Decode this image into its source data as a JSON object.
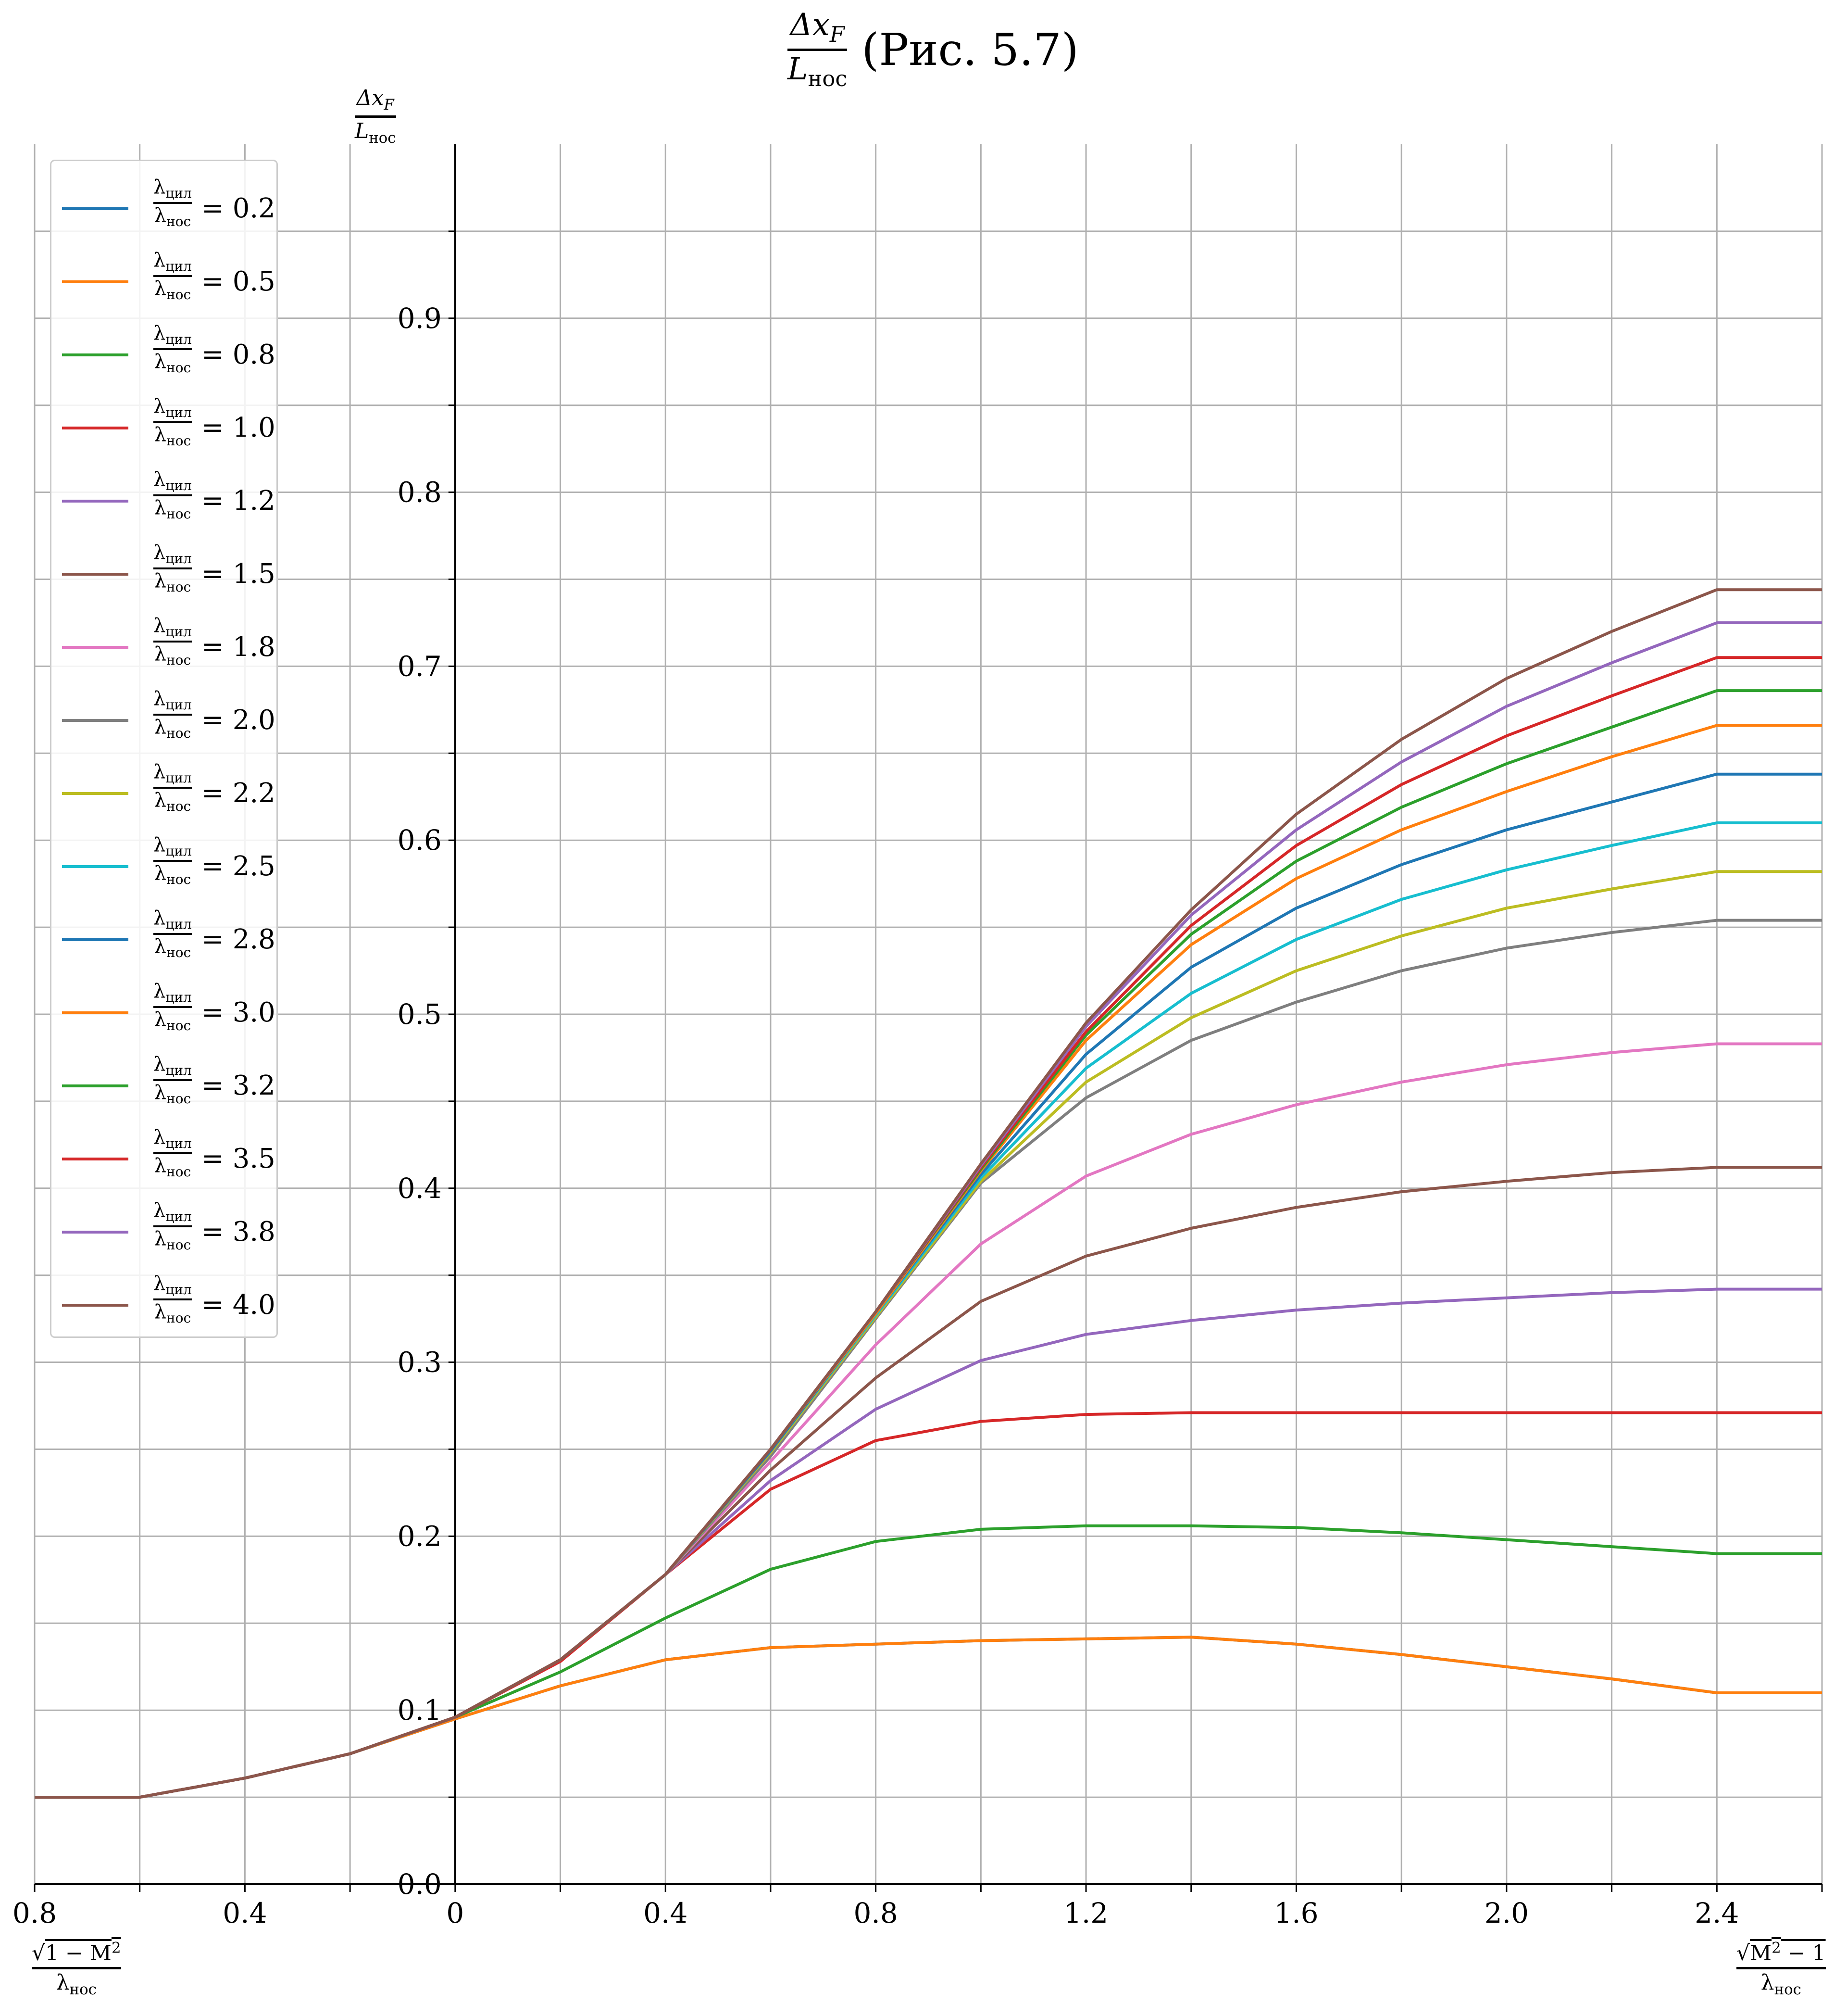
{
  "title": {
    "num": "Δx",
    "num_sub": "F",
    "den": "L",
    "den_sub": "нос",
    "text": "(Рис. 5.7)"
  },
  "y_axis_label": {
    "num": "Δx",
    "num_sub": "F",
    "den": "L",
    "den_sub": "нос"
  },
  "x_axis_label_left": {
    "num_sqrt": "1 − M",
    "num_sup": "2",
    "den": "λ",
    "den_sub": "нос"
  },
  "x_axis_label_right": {
    "num_sqrt": "M",
    "num_sup": "2",
    "num_tail": " − 1",
    "den": "λ",
    "den_sub": "нос"
  },
  "legend_label": {
    "num": "λ",
    "num_sub": "цил",
    "den": "λ",
    "den_sub": "нос"
  },
  "chart_data": {
    "type": "line",
    "xlim": [
      -0.8,
      2.6
    ],
    "ylim": [
      0.0,
      1.0
    ],
    "x_ticks": [
      -0.8,
      -0.6,
      -0.4,
      -0.2,
      0,
      0.2,
      0.4,
      0.6,
      0.8,
      1.0,
      1.2,
      1.4,
      1.6,
      1.8,
      2.0,
      2.2,
      2.4,
      2.6
    ],
    "x_tick_labels": [
      {
        "x": -0.8,
        "label": "0.8"
      },
      {
        "x": -0.4,
        "label": "0.4"
      },
      {
        "x": 0,
        "label": "0"
      },
      {
        "x": 0.4,
        "label": "0.4"
      },
      {
        "x": 0.8,
        "label": "0.8"
      },
      {
        "x": 1.2,
        "label": "1.2"
      },
      {
        "x": 1.6,
        "label": "1.6"
      },
      {
        "x": 2.0,
        "label": "2.0"
      },
      {
        "x": 2.4,
        "label": "2.4"
      }
    ],
    "y_ticks": [
      0.0,
      0.05,
      0.1,
      0.15,
      0.2,
      0.25,
      0.3,
      0.35,
      0.4,
      0.45,
      0.5,
      0.55,
      0.6,
      0.65,
      0.7,
      0.75,
      0.8,
      0.85,
      0.9,
      0.95
    ],
    "y_tick_labels": [
      {
        "y": 0.0,
        "label": "0.0"
      },
      {
        "y": 0.1,
        "label": "0.1"
      },
      {
        "y": 0.2,
        "label": "0.2"
      },
      {
        "y": 0.3,
        "label": "0.3"
      },
      {
        "y": 0.4,
        "label": "0.4"
      },
      {
        "y": 0.5,
        "label": "0.5"
      },
      {
        "y": 0.6,
        "label": "0.6"
      },
      {
        "y": 0.7,
        "label": "0.7"
      },
      {
        "y": 0.8,
        "label": "0.8"
      },
      {
        "y": 0.9,
        "label": "0.9"
      }
    ],
    "grid": true,
    "legend_position": "upper-left",
    "x": [
      -0.8,
      -0.6,
      -0.4,
      -0.2,
      0.0,
      0.2,
      0.4,
      0.6,
      0.8,
      1.0,
      1.2,
      1.4,
      1.6,
      1.8,
      2.0,
      2.2,
      2.4,
      2.6
    ],
    "series": [
      {
        "name": "0.2",
        "color": "#1f77b4",
        "values": [
          0.05,
          0.05,
          0.061,
          0.075,
          0.095,
          0.114,
          0.129,
          0.136,
          0.138,
          0.14,
          0.141,
          0.142,
          0.138,
          0.132,
          0.125,
          0.118,
          0.11,
          0.11
        ]
      },
      {
        "name": "0.5",
        "color": "#ff7f0e",
        "values": [
          0.05,
          0.05,
          0.061,
          0.075,
          0.095,
          0.114,
          0.129,
          0.136,
          0.138,
          0.14,
          0.141,
          0.142,
          0.138,
          0.132,
          0.125,
          0.118,
          0.11,
          0.11
        ]
      },
      {
        "name": "0.8",
        "color": "#2ca02c",
        "values": [
          0.05,
          0.05,
          0.061,
          0.075,
          0.096,
          0.122,
          0.153,
          0.181,
          0.197,
          0.204,
          0.206,
          0.206,
          0.205,
          0.202,
          0.198,
          0.194,
          0.19,
          0.19
        ]
      },
      {
        "name": "1.0",
        "color": "#d62728",
        "values": [
          0.05,
          0.05,
          0.061,
          0.075,
          0.096,
          0.128,
          0.178,
          0.227,
          0.255,
          0.266,
          0.27,
          0.271,
          0.271,
          0.271,
          0.271,
          0.271,
          0.271,
          0.271
        ]
      },
      {
        "name": "1.2",
        "color": "#9467bd",
        "values": [
          0.05,
          0.05,
          0.061,
          0.075,
          0.096,
          0.129,
          0.178,
          0.232,
          0.273,
          0.301,
          0.316,
          0.324,
          0.33,
          0.334,
          0.337,
          0.34,
          0.342,
          0.342
        ]
      },
      {
        "name": "1.5",
        "color": "#8c564b",
        "values": [
          0.05,
          0.05,
          0.061,
          0.075,
          0.096,
          0.129,
          0.178,
          0.238,
          0.291,
          0.335,
          0.361,
          0.377,
          0.389,
          0.398,
          0.404,
          0.409,
          0.412,
          0.412
        ]
      },
      {
        "name": "1.8",
        "color": "#e377c2",
        "values": [
          0.05,
          0.05,
          0.061,
          0.075,
          0.096,
          0.129,
          0.178,
          0.243,
          0.31,
          0.368,
          0.407,
          0.431,
          0.448,
          0.461,
          0.471,
          0.478,
          0.483,
          0.483
        ]
      },
      {
        "name": "2.0",
        "color": "#7f7f7f",
        "values": [
          0.05,
          0.05,
          0.061,
          0.075,
          0.096,
          0.129,
          0.178,
          0.246,
          0.325,
          0.403,
          0.452,
          0.485,
          0.507,
          0.525,
          0.538,
          0.547,
          0.554,
          0.554
        ]
      },
      {
        "name": "2.2",
        "color": "#bcbd22",
        "values": [
          0.05,
          0.05,
          0.061,
          0.075,
          0.096,
          0.129,
          0.178,
          0.248,
          0.326,
          0.404,
          0.461,
          0.498,
          0.525,
          0.545,
          0.561,
          0.572,
          0.582,
          0.582
        ]
      },
      {
        "name": "2.5",
        "color": "#17becf",
        "values": [
          0.05,
          0.05,
          0.061,
          0.075,
          0.096,
          0.129,
          0.178,
          0.249,
          0.327,
          0.406,
          0.469,
          0.512,
          0.543,
          0.566,
          0.583,
          0.597,
          0.61,
          0.61
        ]
      },
      {
        "name": "2.8",
        "color": "#1f77b4",
        "values": [
          0.05,
          0.05,
          0.061,
          0.075,
          0.096,
          0.129,
          0.178,
          0.249,
          0.328,
          0.408,
          0.477,
          0.527,
          0.561,
          0.586,
          0.606,
          0.622,
          0.638,
          0.638
        ]
      },
      {
        "name": "3.0",
        "color": "#ff7f0e",
        "values": [
          0.05,
          0.05,
          0.061,
          0.075,
          0.096,
          0.129,
          0.178,
          0.25,
          0.328,
          0.41,
          0.485,
          0.54,
          0.578,
          0.606,
          0.628,
          0.648,
          0.666,
          0.666
        ]
      },
      {
        "name": "3.2",
        "color": "#2ca02c",
        "values": [
          0.05,
          0.05,
          0.061,
          0.075,
          0.096,
          0.129,
          0.178,
          0.25,
          0.329,
          0.411,
          0.488,
          0.546,
          0.588,
          0.619,
          0.644,
          0.665,
          0.686,
          0.686
        ]
      },
      {
        "name": "3.5",
        "color": "#d62728",
        "values": [
          0.05,
          0.05,
          0.061,
          0.075,
          0.096,
          0.129,
          0.178,
          0.25,
          0.329,
          0.412,
          0.49,
          0.551,
          0.597,
          0.632,
          0.66,
          0.683,
          0.705,
          0.705
        ]
      },
      {
        "name": "3.8",
        "color": "#9467bd",
        "values": [
          0.05,
          0.05,
          0.061,
          0.075,
          0.096,
          0.129,
          0.178,
          0.25,
          0.329,
          0.413,
          0.493,
          0.557,
          0.606,
          0.645,
          0.677,
          0.702,
          0.725,
          0.725
        ]
      },
      {
        "name": "4.0",
        "color": "#8c564b",
        "values": [
          0.05,
          0.05,
          0.061,
          0.075,
          0.096,
          0.129,
          0.178,
          0.25,
          0.329,
          0.414,
          0.495,
          0.56,
          0.615,
          0.658,
          0.693,
          0.72,
          0.744,
          0.744
        ]
      }
    ]
  }
}
